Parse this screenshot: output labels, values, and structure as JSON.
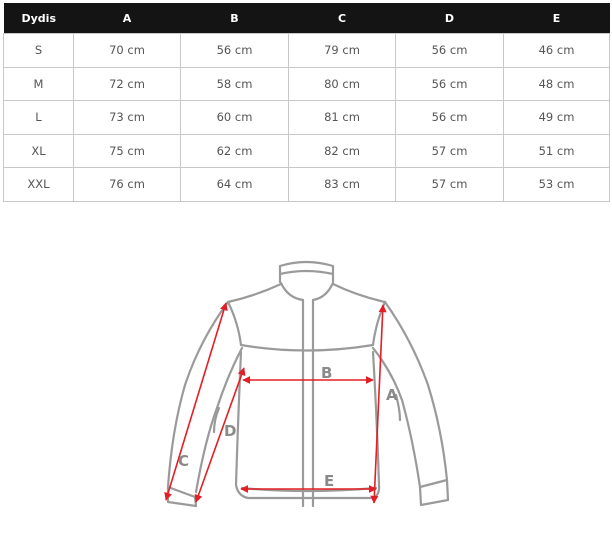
{
  "size_table": {
    "headers": [
      "Dydis",
      "A",
      "B",
      "C",
      "D",
      "E"
    ],
    "rows": [
      [
        "S",
        "70 cm",
        "56 cm",
        "79 cm",
        "56 cm",
        "46 cm"
      ],
      [
        "M",
        "72 cm",
        "58 cm",
        "80 cm",
        "56 cm",
        "48 cm"
      ],
      [
        "L",
        "73 cm",
        "60 cm",
        "81 cm",
        "56 cm",
        "49 cm"
      ],
      [
        "XL",
        "75 cm",
        "62 cm",
        "82 cm",
        "57 cm",
        "51 cm"
      ],
      [
        "XXL",
        "76 cm",
        "64 cm",
        "83 cm",
        "57 cm",
        "53 cm"
      ]
    ]
  },
  "diagram": {
    "labels": {
      "a": "A",
      "b": "B",
      "c": "C",
      "d": "D",
      "e": "E"
    },
    "outline_color": "#999999",
    "arrow_color": "#e31e24"
  }
}
